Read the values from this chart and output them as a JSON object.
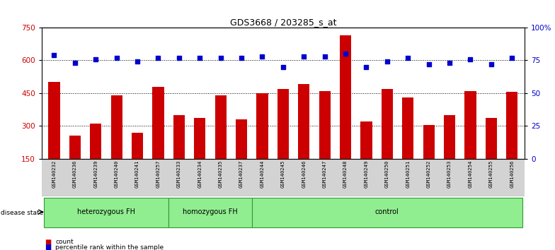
{
  "title": "GDS3668 / 203285_s_at",
  "samples": [
    "GSM140232",
    "GSM140236",
    "GSM140239",
    "GSM140240",
    "GSM140241",
    "GSM140257",
    "GSM140233",
    "GSM140234",
    "GSM140235",
    "GSM140237",
    "GSM140244",
    "GSM140245",
    "GSM140246",
    "GSM140247",
    "GSM140248",
    "GSM140249",
    "GSM140250",
    "GSM140251",
    "GSM140252",
    "GSM140253",
    "GSM140254",
    "GSM140255",
    "GSM140256"
  ],
  "counts": [
    500,
    255,
    310,
    440,
    270,
    480,
    350,
    335,
    440,
    330,
    450,
    470,
    490,
    460,
    715,
    320,
    470,
    430,
    305,
    350,
    460,
    335,
    455
  ],
  "percentiles": [
    79,
    73,
    76,
    77,
    74,
    77,
    77,
    77,
    77,
    77,
    78,
    70,
    78,
    78,
    80,
    70,
    74,
    77,
    72,
    73,
    76,
    72,
    77
  ],
  "group_boundaries": [
    0,
    6,
    10,
    23
  ],
  "group_labels": [
    "heterozygous FH",
    "homozygous FH",
    "control"
  ],
  "bar_color": "#CC0000",
  "dot_color": "#0000CC",
  "left_ylim": [
    150,
    750
  ],
  "left_yticks": [
    150,
    300,
    450,
    600,
    750
  ],
  "right_ylim": [
    0,
    100
  ],
  "right_yticks": [
    0,
    25,
    50,
    75,
    100
  ],
  "right_yticklabels": [
    "0",
    "25",
    "50",
    "75",
    "100%"
  ],
  "grid_values": [
    300,
    450,
    600
  ],
  "background_color": "#ffffff",
  "tick_label_area_color": "#d3d3d3",
  "green_color": "#90EE90",
  "green_border": "#339933"
}
